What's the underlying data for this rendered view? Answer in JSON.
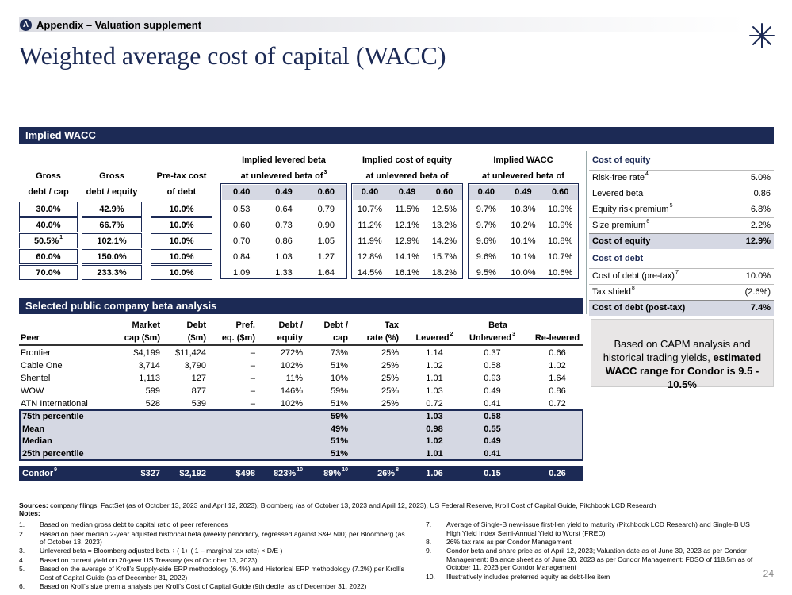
{
  "header": {
    "badge": "A",
    "section": "Appendix – Valuation supplement",
    "title": "Weighted average cost of capital (WACC)",
    "page": "24"
  },
  "wacc": {
    "title": "Implied WACC",
    "left_headers": [
      [
        "Gross",
        "debt  / cap"
      ],
      [
        "Gross",
        "debt / equity"
      ],
      [
        "Pre-tax cost",
        "of debt"
      ]
    ],
    "groups": [
      {
        "line1": "Implied levered beta",
        "line2": "at unlevered beta of",
        "sup": "3",
        "betas": [
          "0.40",
          "0.49",
          "0.60"
        ]
      },
      {
        "line1": "Implied cost of equity",
        "line2": "at unlevered beta of",
        "betas": [
          "0.40",
          "0.49",
          "0.60"
        ]
      },
      {
        "line1": "Implied WACC",
        "line2": "at unlevered beta of",
        "betas": [
          "0.40",
          "0.49",
          "0.60"
        ]
      }
    ],
    "rows": [
      [
        "30.0%",
        "42.9%",
        "10.0%",
        "0.53",
        "0.64",
        "0.79",
        "10.7%",
        "11.5%",
        "12.5%",
        "9.7%",
        "10.3%",
        "10.9%"
      ],
      [
        "40.0%",
        "66.7%",
        "10.0%",
        "0.60",
        "0.73",
        "0.90",
        "11.2%",
        "12.1%",
        "13.2%",
        "9.7%",
        "10.2%",
        "10.9%"
      ],
      [
        {
          "text": "50.5%",
          "sup": "1"
        },
        "102.1%",
        "10.0%",
        "0.70",
        "0.86",
        "1.05",
        "11.9%",
        "12.9%",
        "14.2%",
        "9.6%",
        "10.1%",
        "10.8%"
      ],
      [
        "60.0%",
        "150.0%",
        "10.0%",
        "0.84",
        "1.03",
        "1.27",
        "12.8%",
        "14.1%",
        "15.7%",
        "9.6%",
        "10.1%",
        "10.7%"
      ],
      [
        "70.0%",
        "233.3%",
        "10.0%",
        "1.09",
        "1.33",
        "1.64",
        "14.5%",
        "16.1%",
        "18.2%",
        "9.5%",
        "10.0%",
        "10.6%"
      ]
    ]
  },
  "cost_of_equity": {
    "title": "Cost of equity",
    "rows": [
      {
        "label": "Risk-free rate",
        "sup": "4",
        "value": "5.0%"
      },
      {
        "label": "Levered beta",
        "value": "0.86"
      },
      {
        "label": "Equity risk premium",
        "sup": "5",
        "value": "6.8%"
      },
      {
        "label": "Size premium",
        "sup": "6",
        "value": "2.2%"
      }
    ],
    "total": {
      "label": "Cost of equity",
      "value": "12.9%"
    }
  },
  "cost_of_debt": {
    "title": "Cost of debt",
    "rows": [
      {
        "label": "Cost of debt (pre-tax)",
        "sup": "7",
        "value": "10.0%"
      },
      {
        "label": "Tax shield",
        "sup": "8",
        "value": "(2.6%)"
      }
    ],
    "total": {
      "label": "Cost of debt (post-tax)",
      "value": "7.4%"
    }
  },
  "callout": {
    "text": "Based on CAPM analysis and historical trading yields,",
    "bold": "estimated WACC range for Condor is 9.5 - 10.5%"
  },
  "beta": {
    "title": "Selected public company beta analysis",
    "group": "Beta",
    "headers": [
      {
        "lines": [
          "Peer"
        ]
      },
      {
        "lines": [
          "Market",
          "cap ($m)"
        ]
      },
      {
        "lines": [
          "Debt",
          "($m)"
        ]
      },
      {
        "lines": [
          "Pref.",
          "eq. ($m)"
        ]
      },
      {
        "lines": [
          "Debt /",
          "equity"
        ]
      },
      {
        "lines": [
          "Debt /",
          "cap"
        ]
      },
      {
        "lines": [
          "Tax",
          "rate (%)"
        ]
      },
      {
        "lines": [
          "Levered"
        ],
        "sup": "2"
      },
      {
        "lines": [
          "Unlevered"
        ],
        "sup": "3"
      },
      {
        "lines": [
          "Re-levered"
        ]
      }
    ],
    "rows": [
      [
        "Frontier",
        "$4,199",
        "$11,424",
        "–",
        "272%",
        "73%",
        "25%",
        "1.14",
        "0.37",
        "0.66"
      ],
      [
        "Cable One",
        "3,714",
        "3,790",
        "–",
        "102%",
        "51%",
        "25%",
        "1.02",
        "0.58",
        "1.02"
      ],
      [
        "Shentel",
        "1,113",
        "127",
        "–",
        "11%",
        "10%",
        "25%",
        "1.01",
        "0.93",
        "1.64"
      ],
      [
        "WOW",
        "599",
        "877",
        "–",
        "146%",
        "59%",
        "25%",
        "1.03",
        "0.49",
        "0.86"
      ],
      [
        "ATN International",
        "528",
        "539",
        "–",
        "102%",
        "51%",
        "25%",
        "0.72",
        "0.41",
        "0.72"
      ]
    ],
    "stats": [
      {
        "label": "75th percentile",
        "debt_cap": "59%",
        "levered": "1.03",
        "unlevered": "0.58"
      },
      {
        "label": "Mean",
        "debt_cap": "49%",
        "levered": "0.98",
        "unlevered": "0.55"
      },
      {
        "label": "Median",
        "debt_cap": "51%",
        "levered": "1.02",
        "unlevered": "0.49"
      },
      {
        "label": "25th percentile",
        "debt_cap": "51%",
        "levered": "1.01",
        "unlevered": "0.41"
      }
    ],
    "condor": [
      {
        "text": "Condor",
        "sup": "9"
      },
      "$327",
      "$2,192",
      "$498",
      {
        "text": "823%",
        "sup": "10"
      },
      {
        "text": "89%",
        "sup": "10"
      },
      {
        "text": "26%",
        "sup": "8"
      },
      "1.06",
      "0.15",
      "0.26"
    ]
  },
  "sources": {
    "label": "Sources:",
    "text": "company filings, FactSet (as of October 13, 2023 and April 12, 2023), Bloomberg (as of October 13, 2023 and April 12, 2023), US Federal Reserve, Kroll Cost of Capital Guide, Pitchbook LCD Research"
  },
  "notes": {
    "title": "Notes:",
    "left": [
      {
        "num": "1.",
        "text": "Based on median gross debt to capital ratio of peer references"
      },
      {
        "num": "2.",
        "text": "Based on peer median 2-year adjusted historical beta (weekly periodicity, regressed against S&P 500) per Bloomberg (as of October 13, 2023)"
      },
      {
        "num": "3.",
        "text": "Unlevered beta = Bloomberg adjusted beta ÷ ( 1+ ( 1 – marginal tax rate) × D/E )"
      },
      {
        "num": "4.",
        "text": "Based on current yield on 20-year US Treasury (as of October 13, 2023)"
      },
      {
        "num": "5.",
        "text": "Based on the average of Kroll’s Supply-side ERP methodology (6.4%) and Historical ERP methodology (7.2%) per Kroll’s Cost of Capital Guide (as of December 31, 2022)"
      },
      {
        "num": "6.",
        "text": "Based on Kroll’s size premia analysis per Kroll’s Cost of Capital Guide (9th decile, as of December 31, 2022)"
      }
    ],
    "right": [
      {
        "num": "7.",
        "text": "Average of Single-B new-issue first-lien yield to maturity (Pitchbook LCD Research) and Single-B US High Yield Index Semi-Annual Yield to Worst (FRED)"
      },
      {
        "num": "8.",
        "text": "26% tax rate as per Condor Management"
      },
      {
        "num": "9.",
        "text": "Condor beta and share price as of April 12, 2023; Valuation date as of June 30, 2023 as per Condor Management; Balance sheet as of June 30, 2023 as per Condor Management; FDSO of 118.5m as of October 11, 2023 per Condor Management"
      },
      {
        "num": "10.",
        "text": "Illustratively includes preferred equity as debt-like item"
      }
    ]
  }
}
